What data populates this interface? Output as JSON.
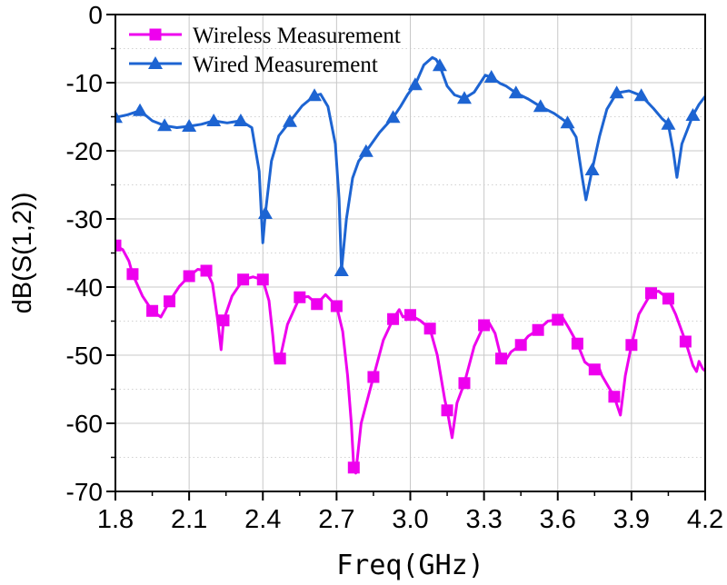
{
  "figure": {
    "background": "#ffffff"
  },
  "chart_data": {
    "type": "line",
    "title": "",
    "xlabel": "Freq(GHz)",
    "ylabel": "dB(S(1,2))",
    "xlim": [
      1.8,
      4.2
    ],
    "ylim": [
      -70,
      0
    ],
    "x_ticks": [
      1.8,
      2.1,
      2.4,
      2.7,
      3.0,
      3.3,
      3.6,
      3.9,
      4.2
    ],
    "x_tick_labels": [
      "1.8",
      "2.1",
      "2.4",
      "2.7",
      "3.0",
      "3.3",
      "3.6",
      "3.9",
      "4.2"
    ],
    "x_minor_ticks": [
      1.95,
      2.25,
      2.55,
      2.85,
      3.15,
      3.45,
      3.75,
      4.05
    ],
    "y_ticks": [
      0,
      -10,
      -20,
      -30,
      -40,
      -50,
      -60,
      -70
    ],
    "y_tick_labels": [
      "0",
      "-10",
      "-20",
      "-30",
      "-40",
      "-50",
      "-60",
      "-70"
    ],
    "y_minor_ticks": [
      -5,
      -15,
      -25,
      -35,
      -45,
      -55,
      -65
    ],
    "grid": {
      "major": true,
      "major_color": "#c8c8c8",
      "minor_horizontal": true,
      "minor_color": "#d2d2d2",
      "minor_style": "dotted"
    },
    "axis_color": "#000000",
    "legend": {
      "position": "top-left",
      "border": false
    },
    "series": [
      {
        "name": "Wireless Measurement",
        "color": "#EE00EE",
        "marker": "square",
        "points": [
          [
            1.8,
            -33.9,
            1
          ],
          [
            1.83,
            -34.5,
            0
          ],
          [
            1.855,
            -36.2,
            0
          ],
          [
            1.87,
            -38.1,
            1
          ],
          [
            1.91,
            -41.3,
            0
          ],
          [
            1.95,
            -43.5,
            1
          ],
          [
            1.985,
            -44.4,
            0
          ],
          [
            2.02,
            -42.1,
            1
          ],
          [
            2.06,
            -39.9,
            0
          ],
          [
            2.1,
            -38.4,
            1
          ],
          [
            2.135,
            -37.4,
            0
          ],
          [
            2.17,
            -37.6,
            1
          ],
          [
            2.195,
            -39.5,
            0
          ],
          [
            2.215,
            -44.5,
            0
          ],
          [
            2.23,
            -49.2,
            0
          ],
          [
            2.24,
            -44.9,
            1
          ],
          [
            2.275,
            -41.3,
            0
          ],
          [
            2.32,
            -38.9,
            1
          ],
          [
            2.36,
            -38.5,
            0
          ],
          [
            2.4,
            -38.9,
            1
          ],
          [
            2.425,
            -42.0,
            0
          ],
          [
            2.44,
            -47.0,
            0
          ],
          [
            2.45,
            -50.9,
            0
          ],
          [
            2.47,
            -50.5,
            1
          ],
          [
            2.5,
            -45.5,
            0
          ],
          [
            2.55,
            -41.5,
            1
          ],
          [
            2.585,
            -41.4,
            0
          ],
          [
            2.62,
            -42.5,
            1
          ],
          [
            2.655,
            -41.1,
            0
          ],
          [
            2.7,
            -42.8,
            1
          ],
          [
            2.725,
            -46.5,
            0
          ],
          [
            2.745,
            -53.0,
            0
          ],
          [
            2.76,
            -60.0,
            0
          ],
          [
            2.77,
            -66.5,
            1
          ],
          [
            2.778,
            -67.3,
            0
          ],
          [
            2.8,
            -60.0,
            0
          ],
          [
            2.85,
            -53.2,
            1
          ],
          [
            2.89,
            -47.8,
            0
          ],
          [
            2.93,
            -44.7,
            1
          ],
          [
            2.955,
            -43.3,
            0
          ],
          [
            2.97,
            -44.4,
            0
          ],
          [
            3.0,
            -44.1,
            1
          ],
          [
            3.04,
            -44.9,
            0
          ],
          [
            3.08,
            -46.1,
            1
          ],
          [
            3.11,
            -50.0,
            0
          ],
          [
            3.14,
            -56.5,
            0
          ],
          [
            3.15,
            -58.1,
            1
          ],
          [
            3.17,
            -62.1,
            0
          ],
          [
            3.19,
            -57.0,
            0
          ],
          [
            3.22,
            -54.1,
            1
          ],
          [
            3.26,
            -48.7,
            0
          ],
          [
            3.3,
            -45.6,
            1
          ],
          [
            3.32,
            -45.2,
            0
          ],
          [
            3.345,
            -46.8,
            0
          ],
          [
            3.37,
            -50.5,
            1
          ],
          [
            3.385,
            -50.9,
            0
          ],
          [
            3.41,
            -49.5,
            0
          ],
          [
            3.45,
            -48.5,
            1
          ],
          [
            3.48,
            -47.2,
            0
          ],
          [
            3.52,
            -46.3,
            1
          ],
          [
            3.56,
            -45.0,
            0
          ],
          [
            3.6,
            -44.8,
            1
          ],
          [
            3.62,
            -44.5,
            0
          ],
          [
            3.645,
            -46.0,
            0
          ],
          [
            3.68,
            -48.3,
            1
          ],
          [
            3.71,
            -51.0,
            0
          ],
          [
            3.75,
            -52.1,
            1
          ],
          [
            3.765,
            -51.6,
            0
          ],
          [
            3.78,
            -53.0,
            0
          ],
          [
            3.83,
            -56.1,
            1
          ],
          [
            3.855,
            -58.8,
            0
          ],
          [
            3.875,
            -53.0,
            0
          ],
          [
            3.9,
            -48.5,
            1
          ],
          [
            3.93,
            -44.0,
            0
          ],
          [
            3.98,
            -40.9,
            1
          ],
          [
            4.01,
            -40.6,
            0
          ],
          [
            4.05,
            -41.7,
            1
          ],
          [
            4.08,
            -44.0,
            0
          ],
          [
            4.12,
            -48.0,
            1
          ],
          [
            4.15,
            -51.5,
            0
          ],
          [
            4.165,
            -52.4,
            0
          ],
          [
            4.175,
            -50.9,
            0
          ],
          [
            4.19,
            -52.0,
            0
          ],
          [
            4.2,
            -52.3,
            0
          ]
        ]
      },
      {
        "name": "Wired Measurement",
        "color": "#1D64D2",
        "marker": "triangle",
        "points": [
          [
            1.8,
            -15.1,
            1
          ],
          [
            1.85,
            -14.7,
            0
          ],
          [
            1.9,
            -14.1,
            1
          ],
          [
            1.95,
            -15.6,
            0
          ],
          [
            2.0,
            -16.3,
            1
          ],
          [
            2.05,
            -16.6,
            0
          ],
          [
            2.1,
            -16.4,
            1
          ],
          [
            2.15,
            -16.1,
            0
          ],
          [
            2.2,
            -15.6,
            1
          ],
          [
            2.255,
            -15.9,
            0
          ],
          [
            2.31,
            -15.6,
            1
          ],
          [
            2.355,
            -16.6,
            0
          ],
          [
            2.385,
            -23.0,
            0
          ],
          [
            2.4,
            -33.5,
            0
          ],
          [
            2.41,
            -29.2,
            1
          ],
          [
            2.435,
            -21.5,
            0
          ],
          [
            2.465,
            -17.8,
            0
          ],
          [
            2.51,
            -15.7,
            1
          ],
          [
            2.56,
            -13.4,
            0
          ],
          [
            2.61,
            -11.9,
            1
          ],
          [
            2.635,
            -11.7,
            0
          ],
          [
            2.665,
            -13.5,
            0
          ],
          [
            2.695,
            -19.0,
            0
          ],
          [
            2.71,
            -27.0,
            0
          ],
          [
            2.72,
            -37.6,
            1
          ],
          [
            2.74,
            -30.0,
            0
          ],
          [
            2.765,
            -24.0,
            0
          ],
          [
            2.79,
            -21.5,
            0
          ],
          [
            2.82,
            -20.1,
            1
          ],
          [
            2.875,
            -17.3,
            0
          ],
          [
            2.93,
            -15.1,
            1
          ],
          [
            2.96,
            -13.5,
            0
          ],
          [
            2.99,
            -11.7,
            0
          ],
          [
            3.02,
            -10.3,
            1
          ],
          [
            3.055,
            -7.4,
            0
          ],
          [
            3.09,
            -6.3,
            0
          ],
          [
            3.105,
            -6.6,
            0
          ],
          [
            3.12,
            -7.5,
            1
          ],
          [
            3.15,
            -10.5,
            0
          ],
          [
            3.18,
            -11.8,
            0
          ],
          [
            3.22,
            -12.3,
            1
          ],
          [
            3.26,
            -11.4,
            0
          ],
          [
            3.305,
            -8.9,
            0
          ],
          [
            3.33,
            -9.2,
            1
          ],
          [
            3.365,
            -10.1,
            0
          ],
          [
            3.39,
            -10.5,
            0
          ],
          [
            3.43,
            -11.5,
            1
          ],
          [
            3.48,
            -12.4,
            0
          ],
          [
            3.53,
            -13.5,
            1
          ],
          [
            3.585,
            -14.5,
            0
          ],
          [
            3.64,
            -15.9,
            1
          ],
          [
            3.675,
            -18.0,
            0
          ],
          [
            3.7,
            -24.0,
            0
          ],
          [
            3.715,
            -27.2,
            0
          ],
          [
            3.74,
            -22.8,
            1
          ],
          [
            3.77,
            -17.9,
            0
          ],
          [
            3.8,
            -13.9,
            0
          ],
          [
            3.84,
            -11.5,
            1
          ],
          [
            3.89,
            -11.2,
            0
          ],
          [
            3.94,
            -11.9,
            1
          ],
          [
            3.99,
            -13.8,
            0
          ],
          [
            4.025,
            -15.3,
            0
          ],
          [
            4.05,
            -16.1,
            1
          ],
          [
            4.07,
            -20.0,
            0
          ],
          [
            4.085,
            -23.9,
            0
          ],
          [
            4.105,
            -19.0,
            0
          ],
          [
            4.15,
            -14.8,
            1
          ],
          [
            4.175,
            -13.2,
            0
          ],
          [
            4.2,
            -12.0,
            0
          ]
        ]
      }
    ]
  }
}
